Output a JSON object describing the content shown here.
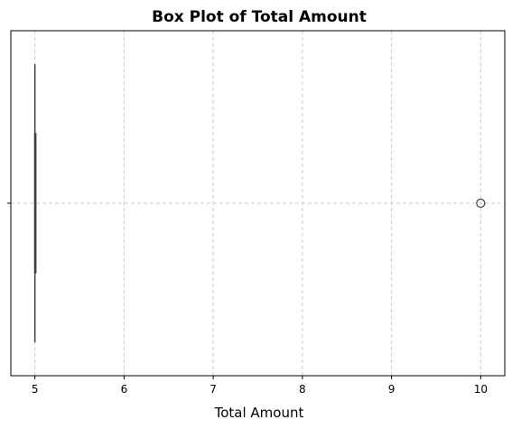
{
  "chart_data": {
    "type": "box",
    "title": "Box Plot of Total Amount",
    "xlabel": "Total Amount",
    "ylabel": "",
    "xlim": [
      4.73,
      10.27
    ],
    "xticks": [
      5,
      6,
      7,
      8,
      9,
      10
    ],
    "grid": true,
    "orientation": "horizontal",
    "box": {
      "min": 5,
      "q1": 5,
      "median": 5,
      "q3": 5,
      "max": 5,
      "outliers": [
        10
      ]
    },
    "colors": {
      "grid": "#cccccc",
      "box_line": "#3f3f3f",
      "axes": "#000000"
    }
  }
}
